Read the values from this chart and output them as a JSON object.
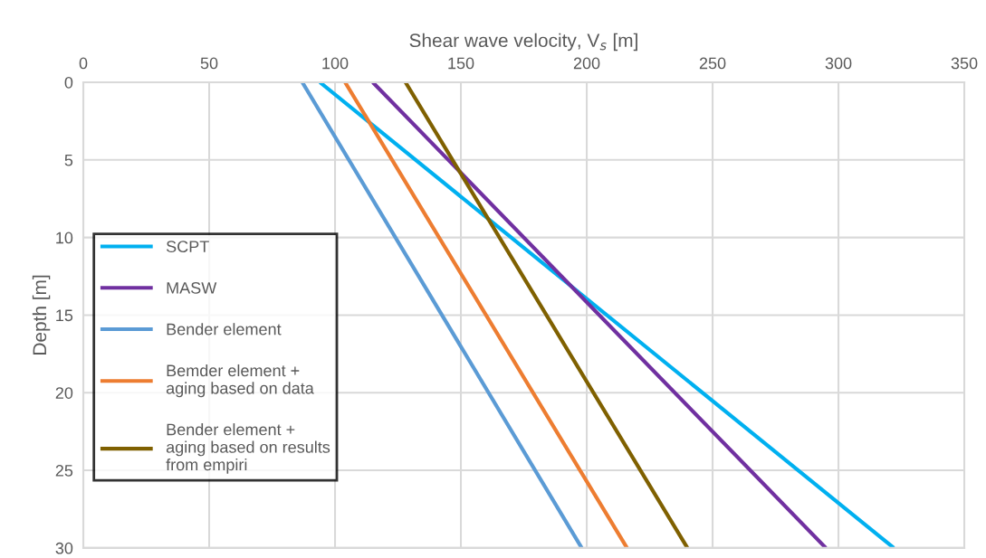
{
  "chart_data": {
    "type": "line",
    "xlabel": "Shear wave velocity, V$_{s}$ [m]",
    "ylabel": "Depth [m]",
    "series": [
      {
        "name": "SCPT",
        "color": "#00b0f0",
        "x": [
          94,
          322
        ],
        "values": [
          0,
          30
        ]
      },
      {
        "name": "MASW",
        "color": "#7030a0",
        "x": [
          115,
          295
        ],
        "values": [
          0,
          30
        ]
      },
      {
        "name": "Bender element",
        "color": "#5b9bd5",
        "x": [
          87,
          198
        ],
        "values": [
          0,
          30
        ]
      },
      {
        "name": "Bemder element +\naging based on data",
        "color": "#ed7d31",
        "x": [
          104,
          216
        ],
        "values": [
          0,
          30
        ]
      },
      {
        "name": "Bender element +\naging based on results\nfrom empiri",
        "color": "#7f6000",
        "x": [
          128,
          240
        ],
        "values": [
          0,
          30
        ]
      }
    ],
    "xlim": [
      0,
      350
    ],
    "xticks": [
      0,
      50,
      100,
      150,
      200,
      250,
      300,
      350
    ],
    "ylim": [
      30,
      0
    ],
    "yticks": [
      0,
      5,
      10,
      15,
      20,
      25,
      30
    ],
    "grid": true,
    "legend": "left"
  }
}
